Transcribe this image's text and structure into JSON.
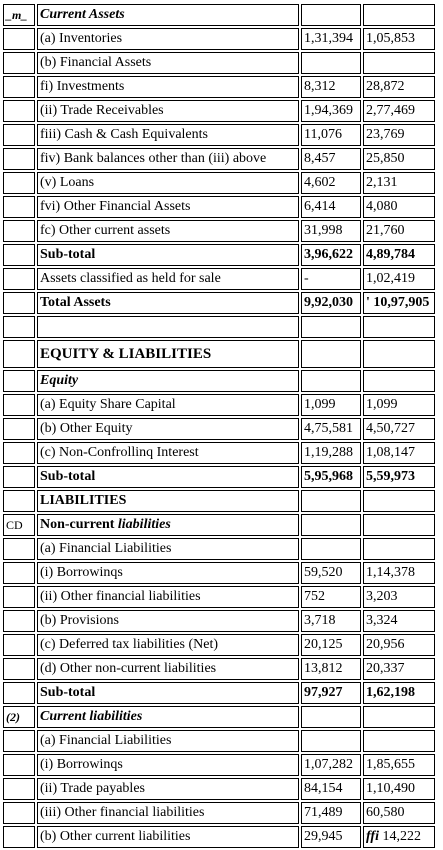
{
  "rows": [
    {
      "marker": "_m_",
      "label": "Current Assets",
      "v2023": "",
      "v2022": "",
      "style": "bi"
    },
    {
      "marker": "",
      "label": "(a) Inventories",
      "v2023": "1,31,394",
      "v2022": "1,05,853",
      "style": ""
    },
    {
      "marker": "",
      "label": "(b) Financial Assets",
      "v2023": "",
      "v2022": "",
      "style": ""
    },
    {
      "marker": "",
      "label": "fi) Investments",
      "v2023": "8,312",
      "v2022": "28,872",
      "style": ""
    },
    {
      "marker": "",
      "label": "(ii) Trade Receivables",
      "v2023": "1,94,369",
      "v2022": "2,77,469",
      "style": ""
    },
    {
      "marker": "",
      "label": "fiii) Cash & Cash Equivalents",
      "v2023": "11,076",
      "v2022": "23,769",
      "style": ""
    },
    {
      "marker": "",
      "label": "fiv) Bank balances other than (iii) above",
      "v2023": "8,457",
      "v2022": "25,850",
      "style": ""
    },
    {
      "marker": "",
      "label": "(v) Loans",
      "v2023": "4,602",
      "v2022": "2,131",
      "style": ""
    },
    {
      "marker": "",
      "label": "fvi) Other Financial Assets",
      "v2023": "6,414",
      "v2022": "4,080",
      "style": ""
    },
    {
      "marker": "",
      "label": "fc) Other current assets",
      "v2023": "31,998",
      "v2022": "21,760",
      "style": ""
    },
    {
      "marker": "",
      "label": "Sub-total",
      "v2023": "3,96,622",
      "v2022": "4,89,784",
      "style": "b"
    },
    {
      "marker": "",
      "label": "Assets classified as held for sale",
      "v2023": "-",
      "v2022": "1,02,419",
      "style": ""
    },
    {
      "marker": "",
      "label": "Total Assets",
      "v2023": "9,92,030",
      "v2022": "' 10,97,905",
      "style": "b"
    },
    {
      "marker": "",
      "label": "",
      "v2023": "",
      "v2022": "",
      "style": ""
    },
    {
      "marker": "",
      "label": "EQUITY & LIABILITIES",
      "v2023": "",
      "v2022": "",
      "style": "b",
      "tall": true
    },
    {
      "marker": "",
      "label": "Equity",
      "v2023": "",
      "v2022": "",
      "style": "bi"
    },
    {
      "marker": "",
      "label": "(a) Equity Share Capital",
      "v2023": "1,099",
      "v2022": "1,099",
      "style": ""
    },
    {
      "marker": "",
      "label": "(b) Other Equity",
      "v2023": "4,75,581",
      "v2022": "4,50,727",
      "style": ""
    },
    {
      "marker": "",
      "label": "(c) Non-Confrollinq Interest",
      "v2023": "1,19,288",
      "v2022": "1,08,147",
      "style": ""
    },
    {
      "marker": "",
      "label": "Sub-total",
      "v2023": "5,95,968",
      "v2022": "5,59,973",
      "style": "b"
    },
    {
      "marker": "",
      "label": "LIABILITIES",
      "v2023": "",
      "v2022": "",
      "style": "b"
    },
    {
      "marker": "CD",
      "label_pre": "Non-current ",
      "label_post": "liabilities",
      "label": "",
      "v2023": "",
      "v2022": "",
      "style": "mixed"
    },
    {
      "marker": "",
      "label": "(a) Financial Liabilities",
      "v2023": "",
      "v2022": "",
      "style": ""
    },
    {
      "marker": "",
      "label": "(i) Borrowinqs",
      "v2023": "59,520",
      "v2022": "1,14,378",
      "style": ""
    },
    {
      "marker": "",
      "label": "(ii) Other financial liabilities",
      "v2023": "752",
      "v2022": "3,203",
      "style": ""
    },
    {
      "marker": "",
      "label": "(b) Provisions",
      "v2023": "3,718",
      "v2022": "3,324",
      "style": ""
    },
    {
      "marker": "",
      "label": "(c) Deferred tax liabilities (Net)",
      "v2023": "20,125",
      "v2022": "20,956",
      "style": ""
    },
    {
      "marker": "",
      "label": "(d) Other non-current liabilities",
      "v2023": "13,812",
      "v2022": "20,337",
      "style": ""
    },
    {
      "marker": "",
      "label": "Sub-total",
      "v2023": "97,927",
      "v2022": "1,62,198",
      "style": "b"
    },
    {
      "marker": "(2)",
      "label": "Current liabilities",
      "v2023": "",
      "v2022": "",
      "style": "bi"
    },
    {
      "marker": "",
      "label": "(a) Financial Liabilities",
      "v2023": "",
      "v2022": "",
      "style": ""
    },
    {
      "marker": "",
      "label": "(i) Borrowinqs",
      "v2023": "1,07,282",
      "v2022": "1,85,655",
      "style": ""
    },
    {
      "marker": "",
      "label": "(ii) Trade payables",
      "v2023": "84,154",
      "v2022": "1,10,490",
      "style": ""
    },
    {
      "marker": "",
      "label": "(iii) Other financial liabilities",
      "v2023": "71,489",
      "v2022": "60,580",
      "style": ""
    },
    {
      "marker": "",
      "label": "(b) Other current liabilities",
      "v2023": "29,945",
      "v2022_pre": "ffi",
      "v2022": " 14,222",
      "style": ""
    }
  ]
}
